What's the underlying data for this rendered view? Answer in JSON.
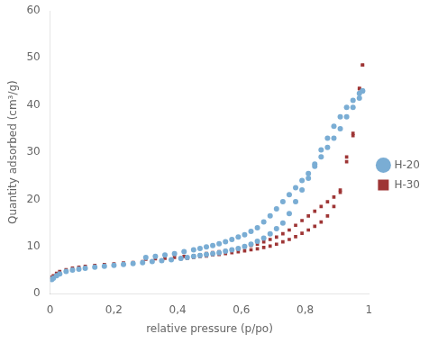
{
  "chart_data": {
    "type": "scatter",
    "xlabel": "relative pressure (p/po)",
    "ylabel": "Quantity adsorbed (cm³/g)",
    "xlim": [
      0,
      1.0
    ],
    "ylim": [
      0,
      60
    ],
    "xticks": [
      0,
      {
        "value": 0.2,
        "label": "0,2"
      },
      {
        "value": 0.4,
        "label": "0,4"
      },
      {
        "value": 0.6,
        "label": "0,6"
      },
      {
        "value": 0.8,
        "label": "0,8"
      },
      1.0
    ],
    "yticks": [
      0,
      10,
      20,
      30,
      40,
      50,
      60
    ],
    "grid": false,
    "legend": "right",
    "series": [
      {
        "name": "H-20",
        "color": "#7aadd4",
        "marker": "circle",
        "x": [
          0.005,
          0.01,
          0.02,
          0.03,
          0.05,
          0.07,
          0.09,
          0.11,
          0.14,
          0.17,
          0.2,
          0.23,
          0.26,
          0.29,
          0.32,
          0.35,
          0.38,
          0.41,
          0.43,
          0.45,
          0.47,
          0.49,
          0.51,
          0.53,
          0.55,
          0.57,
          0.59,
          0.61,
          0.63,
          0.65,
          0.67,
          0.69,
          0.71,
          0.73,
          0.75,
          0.77,
          0.79,
          0.81,
          0.83,
          0.85,
          0.87,
          0.89,
          0.91,
          0.93,
          0.95,
          0.97,
          0.98
        ],
        "values": [
          3.0,
          3.3,
          3.8,
          4.2,
          4.7,
          5.0,
          5.2,
          5.4,
          5.6,
          5.8,
          6.0,
          6.2,
          6.4,
          6.6,
          6.8,
          7.0,
          7.2,
          7.5,
          7.7,
          7.9,
          8.1,
          8.3,
          8.5,
          8.7,
          9.0,
          9.3,
          9.6,
          10.0,
          10.5,
          11.1,
          11.8,
          12.7,
          13.8,
          15.0,
          17.0,
          19.5,
          22.0,
          24.5,
          27.5,
          30.5,
          33.0,
          35.5,
          37.5,
          39.5,
          41.0,
          42.5,
          43.0
        ]
      },
      {
        "color": "#7aadd4",
        "marker": "circle",
        "x": [
          0.98,
          0.97,
          0.95,
          0.93,
          0.91,
          0.89,
          0.87,
          0.85,
          0.83,
          0.81,
          0.79,
          0.77,
          0.75,
          0.73,
          0.71,
          0.69,
          0.67,
          0.65,
          0.63,
          0.61,
          0.59,
          0.57,
          0.55,
          0.53,
          0.51,
          0.49,
          0.47,
          0.45,
          0.42,
          0.39,
          0.36,
          0.33,
          0.3
        ],
        "values": [
          43.0,
          41.5,
          39.5,
          37.5,
          35.0,
          33.0,
          31.0,
          29.0,
          27.0,
          25.5,
          24.0,
          22.5,
          21.0,
          19.5,
          18.0,
          16.5,
          15.2,
          14.0,
          13.2,
          12.5,
          12.0,
          11.5,
          11.0,
          10.6,
          10.2,
          9.9,
          9.6,
          9.3,
          8.9,
          8.5,
          8.2,
          7.9,
          7.7
        ]
      },
      {
        "name": "H-30",
        "color": "#9e3535",
        "marker": "square",
        "x": [
          0.005,
          0.01,
          0.02,
          0.03,
          0.05,
          0.07,
          0.09,
          0.11,
          0.14,
          0.17,
          0.2,
          0.23,
          0.26,
          0.29,
          0.32,
          0.35,
          0.38,
          0.41,
          0.43,
          0.45,
          0.47,
          0.49,
          0.51,
          0.53,
          0.55,
          0.57,
          0.59,
          0.61,
          0.63,
          0.65,
          0.67,
          0.69,
          0.71,
          0.73,
          0.75,
          0.77,
          0.79,
          0.81,
          0.83,
          0.85,
          0.87,
          0.89,
          0.91,
          0.93,
          0.95,
          0.97,
          0.98
        ],
        "values": [
          3.5,
          3.8,
          4.3,
          4.7,
          5.1,
          5.4,
          5.6,
          5.8,
          6.0,
          6.2,
          6.3,
          6.5,
          6.6,
          6.8,
          6.9,
          7.0,
          7.2,
          7.4,
          7.5,
          7.7,
          7.9,
          8.0,
          8.2,
          8.3,
          8.5,
          8.7,
          8.9,
          9.1,
          9.3,
          9.5,
          9.8,
          10.1,
          10.5,
          11.0,
          11.5,
          12.1,
          12.8,
          13.5,
          14.3,
          15.2,
          16.5,
          18.5,
          21.5,
          28.0,
          33.5,
          43.5,
          48.5
        ]
      },
      {
        "color": "#9e3535",
        "marker": "square",
        "x": [
          0.98,
          0.97,
          0.95,
          0.93,
          0.91,
          0.89,
          0.87,
          0.85,
          0.83,
          0.81,
          0.79,
          0.77,
          0.75,
          0.73,
          0.71,
          0.69,
          0.67,
          0.65,
          0.63,
          0.61,
          0.59,
          0.57,
          0.55,
          0.53,
          0.51,
          0.49,
          0.47,
          0.45,
          0.42,
          0.39,
          0.36,
          0.33,
          0.3
        ],
        "values": [
          48.5,
          43.5,
          34.0,
          29.0,
          22.0,
          20.5,
          19.5,
          18.5,
          17.5,
          16.5,
          15.5,
          14.5,
          13.5,
          12.7,
          12.0,
          11.5,
          11.0,
          10.5,
          10.2,
          9.9,
          9.6,
          9.4,
          9.1,
          8.9,
          8.7,
          8.5,
          8.3,
          8.1,
          7.9,
          7.7,
          7.5,
          7.4,
          7.3
        ]
      }
    ]
  }
}
